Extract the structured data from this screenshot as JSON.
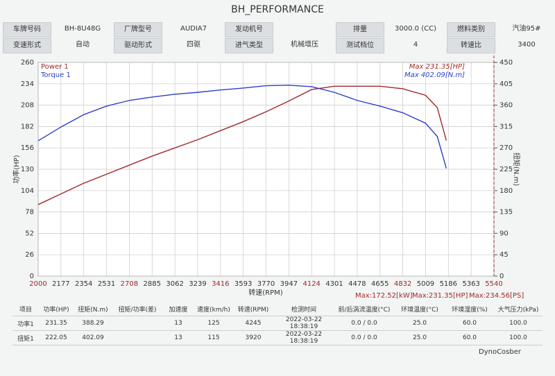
{
  "header": {
    "title": "BH_PERFORMANCE",
    "rows": [
      [
        {
          "label": "车牌号码",
          "value": "BH-8U48G"
        },
        {
          "label": "厂牌型号",
          "value": "AUDIA7"
        },
        {
          "label": "发动机号"
        },
        {
          "label": "排量",
          "value": "3000.0 (CC)"
        },
        {
          "label": "燃料类别",
          "value": "汽油95#"
        }
      ],
      [
        {
          "label": "变速形式",
          "value": "自动"
        },
        {
          "label": "驱动形式",
          "value": "四驱"
        },
        {
          "label": "进气类型",
          "value": "机械增压"
        },
        {
          "label": "测试档位",
          "value": "4"
        },
        {
          "label": "转速比",
          "value": "3400"
        }
      ]
    ]
  },
  "chart_data": {
    "type": "line",
    "x_label": "转速(RPM)",
    "y_label": "功率(HP)",
    "y2_label": "扭矩(N.m)",
    "x": [
      2000,
      2177,
      2354,
      2531,
      2708,
      2885,
      3062,
      3239,
      3416,
      3593,
      3770,
      3947,
      4124,
      4301,
      4478,
      4655,
      4832,
      5009,
      5100,
      5170
    ],
    "series": [
      {
        "name": "Power 1",
        "color": "#a02828",
        "values": [
          87,
          100,
          113,
          124,
          135,
          146,
          156,
          166,
          177,
          188,
          200,
          213,
          227,
          231,
          231,
          231,
          228,
          220,
          205,
          165
        ]
      },
      {
        "name": "Torque 1",
        "color": "#2a3fc8",
        "axis": "y2",
        "values": [
          285,
          314,
          340,
          358,
          370,
          377,
          383,
          387,
          392,
          396,
          401,
          402,
          399,
          387,
          370,
          358,
          344,
          322,
          294,
          227
        ]
      }
    ],
    "xlim": [
      2000,
      5540
    ],
    "xticks": [
      2000,
      2177,
      2354,
      2531,
      2708,
      2885,
      3062,
      3239,
      3416,
      3593,
      3770,
      3947,
      4124,
      4301,
      4478,
      4655,
      4832,
      5009,
      5186,
      5363,
      5540
    ],
    "ylim": [
      0,
      260
    ],
    "yticks": [
      0,
      26,
      52,
      78,
      104,
      130,
      156,
      182,
      208,
      234,
      260
    ],
    "y2lim": [
      0,
      450
    ],
    "y2ticks": [
      0,
      45,
      90,
      135,
      180,
      225,
      270,
      315,
      360,
      405,
      450
    ],
    "grid": true,
    "annotations": [
      {
        "text": "Max 231.35[HP]",
        "color": "#a02828"
      },
      {
        "text": "Max 402.09[N.m]",
        "color": "#2a3fc8"
      }
    ],
    "summary": [
      "Max:172.52[kW]",
      "Max:231.35[HP]",
      "Max:234.56[PS]"
    ]
  },
  "table": {
    "columns": [
      "项目",
      "功率(HP)",
      "扭矩(N.m)",
      "扭矩/功率(差)",
      "加速度",
      "速度(km/h)",
      "转速(RPM)",
      "检测时间",
      "前/后涡流温度(°C)",
      "环境温度(°C)",
      "环境湿度(%)",
      "大气压力(kPa)"
    ],
    "rows": [
      [
        "功率1",
        "231.35",
        "388.29",
        null,
        "13",
        "125",
        "4245",
        "2022-03-22 18:38:19",
        "0.0 / 0.0",
        "25.0",
        "60.0",
        "100.0"
      ],
      [
        "扭矩1",
        "222.05",
        "402.09",
        null,
        "13",
        "115",
        "3920",
        "2022-03-22 18:38:19",
        "0.0 / 0.0",
        "25.0",
        "60.0",
        "100.0"
      ]
    ]
  },
  "footer": "DynoCosber"
}
